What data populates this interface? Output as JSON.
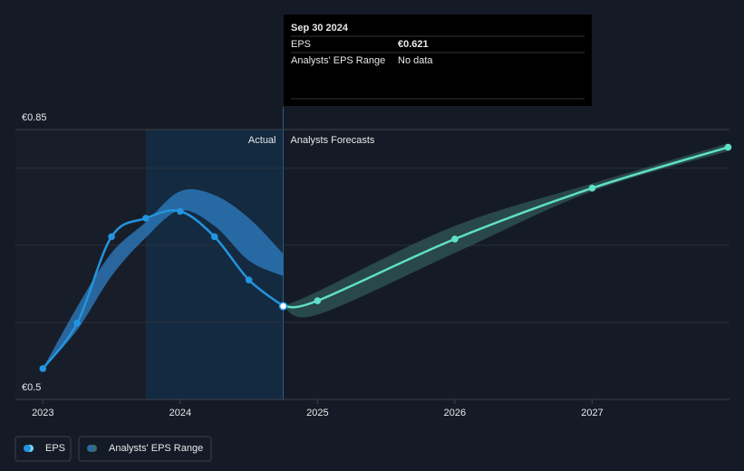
{
  "chart_data": {
    "type": "line",
    "xlim": [
      2022.8,
      2028.0
    ],
    "xticks": [
      2023,
      2024,
      2025,
      2026,
      2027
    ],
    "ylim": [
      0.5,
      0.85
    ],
    "yticks": [
      {
        "value": 0.85,
        "label": "€0.85"
      },
      {
        "value": 0.5,
        "label": "€0.5"
      }
    ],
    "grid_values": [
      0.6,
      0.7,
      0.8
    ],
    "highlight": [
      2023.75,
      2024.75
    ],
    "region_labels": [
      "Actual",
      "Analysts Forecasts"
    ],
    "series": [
      {
        "name": "EPS",
        "color": "#2394df",
        "x": [
          2023.0,
          2023.25,
          2023.5,
          2023.75,
          2024.0,
          2024.25,
          2024.5,
          2024.75
        ],
        "values": [
          0.54,
          0.599,
          0.711,
          0.735,
          0.744,
          0.711,
          0.655,
          0.621
        ]
      }
    ],
    "forecast": {
      "color": "#5fe0c8",
      "x": [
        2024.75,
        2025.0,
        2026.0,
        2027.0,
        2027.99
      ],
      "values": [
        0.621,
        0.628,
        0.708,
        0.774,
        0.827
      ]
    },
    "range": {
      "name": "Analysts' EPS Range",
      "actual": {
        "color": "#2d7fc4",
        "x": [
          2023.0,
          2023.25,
          2023.5,
          2023.75,
          2024.0,
          2024.25,
          2024.5,
          2024.75
        ],
        "low": [
          0.54,
          0.59,
          0.66,
          0.71,
          0.745,
          0.725,
          0.68,
          0.66
        ],
        "high": [
          0.54,
          0.62,
          0.69,
          0.73,
          0.77,
          0.765,
          0.735,
          0.689
        ]
      },
      "forecast": {
        "color": "#3a6e66",
        "x": [
          2024.75,
          2025.0,
          2026.0,
          2027.0,
          2027.99
        ],
        "low": [
          0.621,
          0.61,
          0.69,
          0.77,
          0.822
        ],
        "high": [
          0.621,
          0.64,
          0.725,
          0.78,
          0.832
        ]
      }
    },
    "tooltip": {
      "date": "Sep 30 2024",
      "rows": [
        {
          "label": "EPS",
          "value": 0.621,
          "value_label": "€0.621"
        },
        {
          "label": "Analysts' EPS Range",
          "value_label": "No data"
        }
      ]
    }
  }
}
